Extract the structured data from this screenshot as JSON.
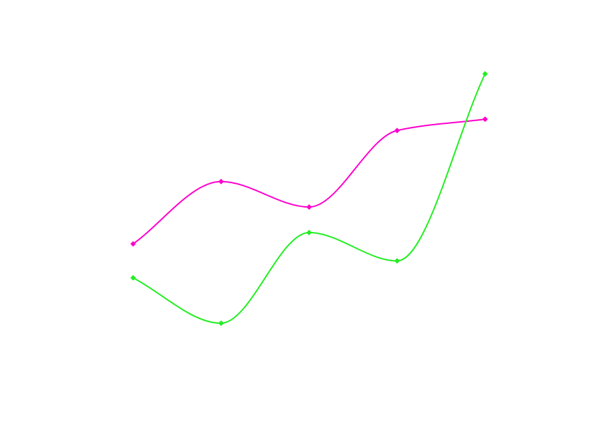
{
  "chart_data": {
    "type": "line",
    "x": [
      1,
      2,
      3,
      4,
      5
    ],
    "series": [
      {
        "color": "#ff00cc",
        "values": [
          5.6,
          7.8,
          6.9,
          9.6,
          10.0
        ]
      },
      {
        "color": "#22ee22",
        "values": [
          4.4,
          2.8,
          6.0,
          5.0,
          11.6
        ]
      }
    ],
    "xlim": [
      1,
      5
    ],
    "ylim": [
      2.8,
      11.6
    ],
    "grid": false,
    "axes_visible": false,
    "line_style": "smooth",
    "marker": "diamond"
  }
}
